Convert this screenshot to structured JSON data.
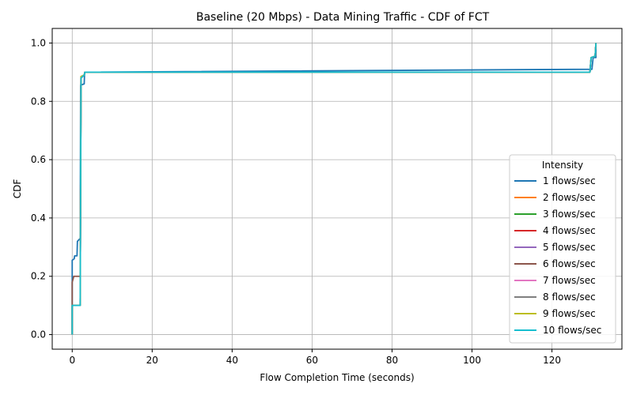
{
  "chart_data": {
    "type": "line",
    "title": "Baseline (20 Mbps) - Data Mining Traffic - CDF of FCT",
    "xlabel": "Flow Completion Time (seconds)",
    "ylabel": "CDF",
    "xlim": [
      -5,
      137.5
    ],
    "ylim": [
      -0.05,
      1.05
    ],
    "xticks": [
      0,
      20,
      40,
      60,
      80,
      100,
      120
    ],
    "yticks": [
      0.0,
      0.2,
      0.4,
      0.6,
      0.8,
      1.0
    ],
    "xtick_labels": [
      "0",
      "20",
      "40",
      "60",
      "80",
      "100",
      "120"
    ],
    "ytick_labels": [
      "0.0",
      "0.2",
      "0.4",
      "0.6",
      "0.8",
      "1.0"
    ],
    "grid": true,
    "legend": {
      "title": "Intensity",
      "placement": "right"
    },
    "series": [
      {
        "name": "1 flows/sec",
        "color": "#1f77b4",
        "points": [
          [
            0,
            0
          ],
          [
            0,
            0.255
          ],
          [
            0.5,
            0.26
          ],
          [
            0.6,
            0.27
          ],
          [
            1.2,
            0.27
          ],
          [
            1.3,
            0.32
          ],
          [
            2,
            0.33
          ],
          [
            2.1,
            0.855
          ],
          [
            3,
            0.86
          ],
          [
            3.1,
            0.9
          ],
          [
            130,
            0.91
          ],
          [
            130.3,
            0.95
          ],
          [
            131,
            0.95
          ],
          [
            131,
            1.0
          ]
        ]
      },
      {
        "name": "2 flows/sec",
        "color": "#ff7f0e",
        "points": [
          [
            0,
            0
          ],
          [
            0,
            0.1
          ],
          [
            2,
            0.1
          ],
          [
            2.2,
            0.885
          ],
          [
            3,
            0.89
          ],
          [
            3.2,
            0.9
          ],
          [
            129.5,
            0.9
          ],
          [
            129.8,
            0.95
          ],
          [
            130.8,
            0.955
          ],
          [
            131,
            1.0
          ]
        ]
      },
      {
        "name": "3 flows/sec",
        "color": "#2ca02c",
        "points": [
          [
            0,
            0
          ],
          [
            0,
            0.1
          ],
          [
            2,
            0.1
          ],
          [
            2.2,
            0.885
          ],
          [
            3,
            0.89
          ],
          [
            3.2,
            0.9
          ],
          [
            129.5,
            0.9
          ],
          [
            129.8,
            0.95
          ],
          [
            130.8,
            0.955
          ],
          [
            131,
            1.0
          ]
        ]
      },
      {
        "name": "4 flows/sec",
        "color": "#d62728",
        "points": [
          [
            0,
            0
          ],
          [
            0,
            0.1
          ],
          [
            2,
            0.1
          ],
          [
            2.2,
            0.885
          ],
          [
            3,
            0.89
          ],
          [
            3.2,
            0.9
          ],
          [
            129.5,
            0.9
          ],
          [
            129.8,
            0.95
          ],
          [
            130.8,
            0.955
          ],
          [
            131,
            1.0
          ]
        ]
      },
      {
        "name": "5 flows/sec",
        "color": "#9467bd",
        "points": [
          [
            0,
            0
          ],
          [
            0,
            0.1
          ],
          [
            2,
            0.1
          ],
          [
            2.2,
            0.885
          ],
          [
            3,
            0.89
          ],
          [
            3.2,
            0.9
          ],
          [
            129.5,
            0.9
          ],
          [
            129.8,
            0.95
          ],
          [
            130.8,
            0.955
          ],
          [
            131,
            1.0
          ]
        ]
      },
      {
        "name": "6 flows/sec",
        "color": "#8c564b",
        "points": [
          [
            0,
            0
          ],
          [
            0,
            0.18
          ],
          [
            0.4,
            0.2
          ],
          [
            2,
            0.2
          ],
          [
            2.2,
            0.88
          ],
          [
            3,
            0.89
          ],
          [
            3.2,
            0.9
          ],
          [
            129.5,
            0.9
          ],
          [
            129.8,
            0.95
          ],
          [
            130.8,
            0.955
          ],
          [
            131,
            1.0
          ]
        ]
      },
      {
        "name": "7 flows/sec",
        "color": "#e377c2",
        "points": [
          [
            0,
            0
          ],
          [
            0,
            0.1
          ],
          [
            2,
            0.1
          ],
          [
            2.2,
            0.885
          ],
          [
            3,
            0.89
          ],
          [
            3.2,
            0.9
          ],
          [
            129.5,
            0.9
          ],
          [
            129.8,
            0.95
          ],
          [
            130.8,
            0.955
          ],
          [
            131,
            1.0
          ]
        ]
      },
      {
        "name": "8 flows/sec",
        "color": "#7f7f7f",
        "points": [
          [
            0,
            0
          ],
          [
            0,
            0.1
          ],
          [
            2,
            0.1
          ],
          [
            2.2,
            0.885
          ],
          [
            3,
            0.89
          ],
          [
            3.2,
            0.9
          ],
          [
            129.5,
            0.9
          ],
          [
            129.8,
            0.95
          ],
          [
            130.8,
            0.955
          ],
          [
            131,
            1.0
          ]
        ]
      },
      {
        "name": "9 flows/sec",
        "color": "#bcbd22",
        "points": [
          [
            0,
            0
          ],
          [
            0,
            0.1
          ],
          [
            2,
            0.1
          ],
          [
            2.2,
            0.885
          ],
          [
            3,
            0.89
          ],
          [
            3.2,
            0.9
          ],
          [
            129.5,
            0.9
          ],
          [
            129.8,
            0.95
          ],
          [
            130.8,
            0.955
          ],
          [
            131,
            1.0
          ]
        ]
      },
      {
        "name": "10 flows/sec",
        "color": "#17becf",
        "points": [
          [
            0,
            0
          ],
          [
            0,
            0.1
          ],
          [
            2,
            0.1
          ],
          [
            2.2,
            0.88
          ],
          [
            3,
            0.89
          ],
          [
            3.2,
            0.9
          ],
          [
            129.5,
            0.9
          ],
          [
            129.8,
            0.95
          ],
          [
            130.8,
            0.955
          ],
          [
            131,
            1.0
          ]
        ]
      }
    ]
  }
}
